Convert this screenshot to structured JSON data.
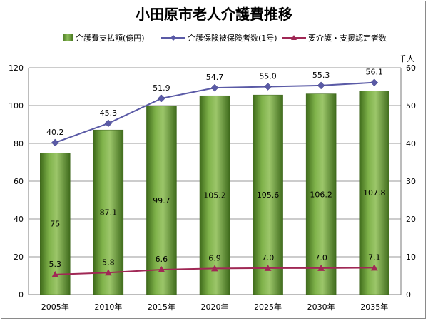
{
  "chart_data": {
    "type": "bar",
    "title": "小田原市老人介護費推移",
    "categories": [
      "2005年",
      "2010年",
      "2015年",
      "2020年",
      "2025年",
      "2030年",
      "2035年"
    ],
    "y_left": {
      "ylim": [
        0,
        120
      ],
      "ticks": [
        "0",
        "20",
        "40",
        "60",
        "80",
        "100",
        "120"
      ]
    },
    "y_right": {
      "unit_label": "千人",
      "ylim": [
        0,
        60
      ],
      "ticks": [
        "0",
        "10",
        "20",
        "30",
        "40",
        "50",
        "60"
      ]
    },
    "grid": true,
    "legend_position": "top",
    "series": [
      {
        "name": "介護費支払額(億円)",
        "type": "bar",
        "axis": "left",
        "color": "#5f8e2f",
        "values": [
          75,
          87.1,
          99.7,
          105.2,
          105.6,
          106.2,
          107.8
        ],
        "labels": [
          "75",
          "87.1",
          "99.7",
          "105.2",
          "105.6",
          "106.2",
          "107.8"
        ]
      },
      {
        "name": "介護保険被保険者数(1号)",
        "type": "line",
        "axis": "right",
        "color": "#5a5aa6",
        "values": [
          40.2,
          45.3,
          51.9,
          54.7,
          55.0,
          55.3,
          56.1
        ],
        "labels": [
          "40.2",
          "45.3",
          "51.9",
          "54.7",
          "55.0",
          "55.3",
          "56.1"
        ]
      },
      {
        "name": "要介護・支援認定者数",
        "type": "line",
        "axis": "right",
        "color": "#a02855",
        "values": [
          5.3,
          5.8,
          6.6,
          6.9,
          7.0,
          7.0,
          7.1
        ],
        "labels": [
          "5.3",
          "5.8",
          "6.6",
          "6.9",
          "7.0",
          "7.0",
          "7.1"
        ]
      }
    ]
  }
}
